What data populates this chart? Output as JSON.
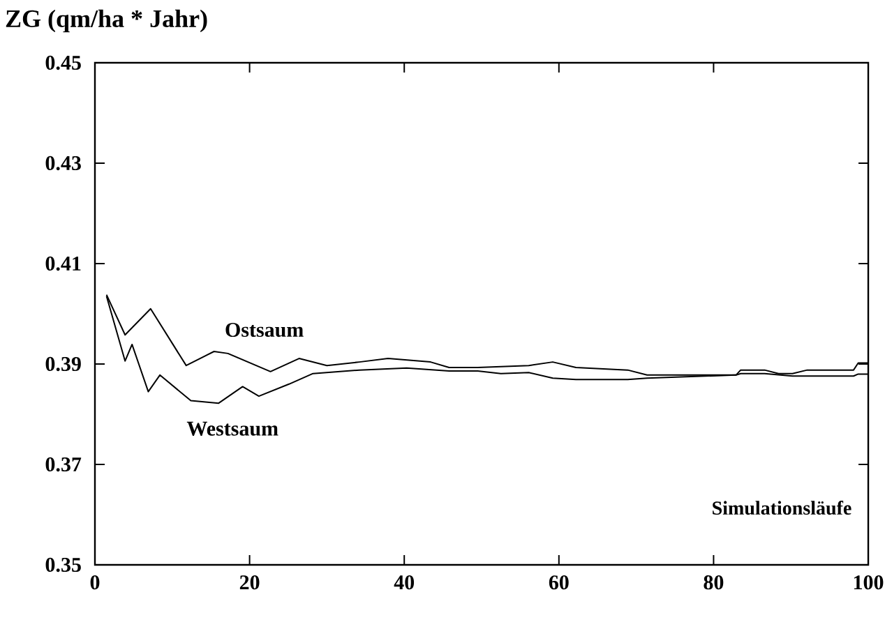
{
  "chart_data": {
    "type": "line",
    "ylabel": "ZG (qm/ha * Jahr)",
    "xlabel": "Simulationsläufe",
    "xlim": [
      0,
      100
    ],
    "ylim": [
      0.35,
      0.45
    ],
    "xticks": [
      0,
      20,
      40,
      60,
      80,
      100
    ],
    "yticks": [
      0.35,
      0.37,
      0.39,
      0.41,
      0.43,
      0.45
    ],
    "grid": false,
    "marker": "none",
    "line_style": "solid",
    "series": [
      {
        "name": "Ostsaum",
        "color": "#000000",
        "x": [
          1.5,
          3.9,
          7.2,
          11.8,
          15.4,
          17.2,
          22.7,
          26.4,
          30.0,
          34.2,
          37.9,
          43.4,
          45.8,
          49.5,
          56.1,
          59.2,
          62.2,
          68.9,
          71.4,
          82.9,
          83.5,
          86.6,
          88.4,
          90.2,
          92.1,
          98.1,
          98.7,
          100
        ],
        "values": [
          0.4038,
          0.3958,
          0.401,
          0.3897,
          0.3925,
          0.3921,
          0.3885,
          0.3911,
          0.3897,
          0.3904,
          0.3911,
          0.3904,
          0.3893,
          0.3893,
          0.3897,
          0.3904,
          0.3893,
          0.3888,
          0.3878,
          0.3878,
          0.3888,
          0.3888,
          0.3881,
          0.3881,
          0.3888,
          0.3888,
          0.3902,
          0.3902
        ]
      },
      {
        "name": "Westsaum",
        "color": "#000000",
        "x": [
          1.5,
          3.9,
          4.8,
          6.9,
          8.4,
          12.4,
          16.0,
          19.1,
          21.2,
          25.1,
          28.2,
          34.2,
          40.3,
          45.8,
          49.5,
          52.5,
          56.1,
          59.2,
          62.2,
          68.9,
          71.4,
          82.9,
          83.5,
          86.6,
          90.2,
          92.1,
          98.1,
          98.7,
          100
        ],
        "values": [
          0.4035,
          0.3906,
          0.3939,
          0.3845,
          0.3878,
          0.3827,
          0.3822,
          0.3855,
          0.3836,
          0.386,
          0.3881,
          0.3888,
          0.3892,
          0.3886,
          0.3886,
          0.3881,
          0.3883,
          0.3872,
          0.3869,
          0.3869,
          0.3872,
          0.3878,
          0.3881,
          0.3881,
          0.3876,
          0.3876,
          0.3876,
          0.388,
          0.388
        ]
      }
    ]
  }
}
